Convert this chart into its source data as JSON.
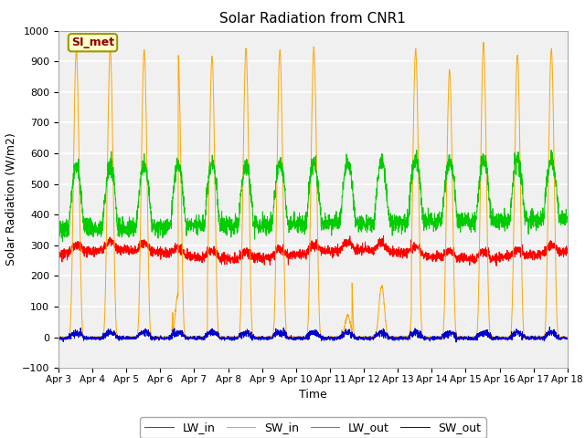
{
  "title": "Solar Radiation from CNR1",
  "xlabel": "Time",
  "ylabel": "Solar Radiation (W/m2)",
  "ylim": [
    -100,
    1000
  ],
  "xlim": [
    0,
    15
  ],
  "x_tick_labels": [
    "Apr 3",
    "Apr 4",
    "Apr 5",
    "Apr 6",
    "Apr 7",
    "Apr 8",
    "Apr 9",
    "Apr 10",
    "Apr 11",
    "Apr 12",
    "Apr 13",
    "Apr 14",
    "Apr 15",
    "Apr 16",
    "Apr 17",
    "Apr 18"
  ],
  "legend_labels": [
    "LW_in",
    "SW_in",
    "LW_out",
    "SW_out"
  ],
  "line_colors": {
    "LW_in": "#ff0000",
    "SW_in": "#ffa500",
    "LW_out": "#00cc00",
    "SW_out": "#0000cd"
  },
  "annotation_text": "SI_met",
  "annotation_color": "#8B0000",
  "annotation_bg": "#ffffcc",
  "annotation_edge": "#999900",
  "fig_bg": "#ffffff",
  "plot_bg": "#f0f0f0",
  "yticks": [
    -100,
    0,
    100,
    200,
    300,
    400,
    500,
    600,
    700,
    800,
    900,
    1000
  ],
  "grid_color": "#ffffff",
  "spine_color": "#aaaaaa"
}
